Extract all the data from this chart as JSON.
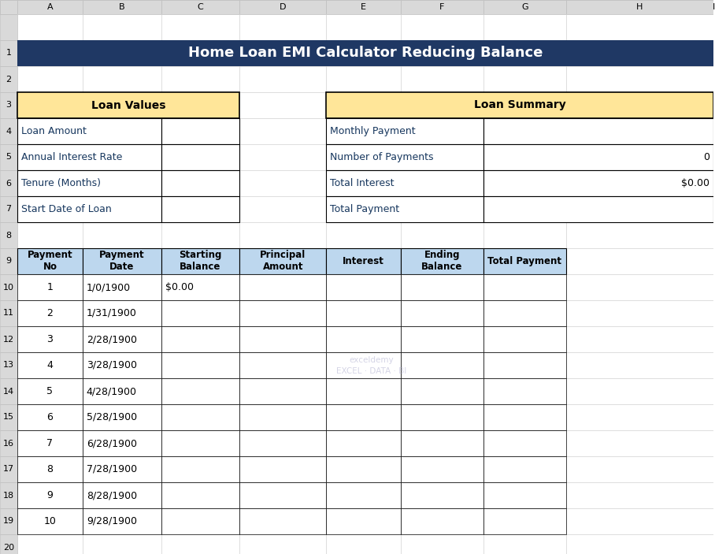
{
  "title": "Home Loan EMI Calculator Reducing Balance",
  "title_bg": "#1F3864",
  "title_fg": "#FFFFFF",
  "header_yellow": "#FFE699",
  "header_blue": "#BDD7EE",
  "border_color": "#000000",
  "cell_bg": "#FFFFFF",
  "spreadsheet_bg": "#FFFFFF",
  "col_header_bg": "#D9D9D9",
  "col_header_fg": "#000000",
  "row_header_bg": "#D9D9D9",
  "row_header_fg": "#000000",
  "loan_values_label": "Loan Values",
  "loan_values_rows": [
    "Loan Amount",
    "Annual Interest Rate",
    "Tenure (Months)",
    "Start Date of Loan"
  ],
  "loan_summary_label": "Loan Summary",
  "loan_summary_rows": [
    "Monthly Payment",
    "Number of Payments",
    "Total Interest",
    "Total Payment"
  ],
  "loan_summary_values": [
    "",
    "0",
    "$0.00",
    ""
  ],
  "table_headers": [
    "Payment\nNo",
    "Payment\nDate",
    "Starting\nBalance",
    "Principal\nAmount",
    "Interest",
    "Ending\nBalance",
    "Total Payment"
  ],
  "table_rows": [
    [
      "1",
      "1/0/1900",
      "$0.00",
      "",
      "",
      "",
      ""
    ],
    [
      "2",
      "1/31/1900",
      "",
      "",
      "",
      "",
      ""
    ],
    [
      "3",
      "2/28/1900",
      "",
      "",
      "",
      "",
      ""
    ],
    [
      "4",
      "3/28/1900",
      "",
      "",
      "",
      "",
      ""
    ],
    [
      "5",
      "4/28/1900",
      "",
      "",
      "",
      "",
      ""
    ],
    [
      "6",
      "5/28/1900",
      "",
      "",
      "",
      "",
      ""
    ],
    [
      "7",
      "6/28/1900",
      "",
      "",
      "",
      "",
      ""
    ],
    [
      "8",
      "7/28/1900",
      "",
      "",
      "",
      "",
      ""
    ],
    [
      "9",
      "8/28/1900",
      "",
      "",
      "",
      "",
      ""
    ],
    [
      "10",
      "9/28/1900",
      "",
      "",
      "",
      "",
      ""
    ]
  ],
  "col_labels": [
    "A",
    "B",
    "C",
    "D",
    "E",
    "F",
    "G",
    "H",
    "I"
  ],
  "row_labels": [
    "",
    "1",
    "2",
    "3",
    "4",
    "5",
    "6",
    "7",
    "8",
    "9",
    "10",
    "11",
    "12",
    "13",
    "14",
    "15",
    "16",
    "17",
    "18",
    "19",
    "20"
  ],
  "watermark_text": "exceldemy\nEXCEL · DATA · BI",
  "label_text_color": "#17375E"
}
